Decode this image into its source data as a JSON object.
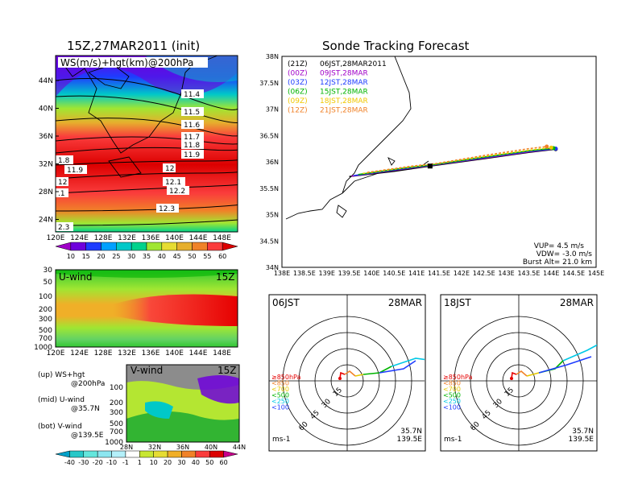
{
  "header": {
    "left_title": "15Z,27MAR2011 (init)",
    "right_title": "Sonde Tracking Forecast"
  },
  "ws_panel": {
    "label": "WS(m/s)+hgt(km)@200hPa",
    "lat_ticks": [
      "44N",
      "40N",
      "36N",
      "32N",
      "28N",
      "24N"
    ],
    "lon_ticks": [
      "120E",
      "124E",
      "128E",
      "132E",
      "136E",
      "140E",
      "144E",
      "148E"
    ],
    "contour_labels": [
      "11.4",
      "11.5",
      "11.6",
      "11.7",
      "11.8",
      "11.9",
      "12",
      "12.1",
      "12.2",
      "12.3",
      "1.8",
      "11.9",
      "12",
      ".1",
      "2.3"
    ],
    "colorbar": [
      "10",
      "15",
      "20",
      "25",
      "30",
      "35",
      "40",
      "45",
      "50",
      "55",
      "60"
    ],
    "colorbar_colors": [
      "#a000c8",
      "#6e00dc",
      "#1e3cff",
      "#00a0ff",
      "#00c8c8",
      "#00d28c",
      "#a0e632",
      "#e6dc32",
      "#e6af2d",
      "#f08228",
      "#fa3c3c",
      "#dc0000"
    ]
  },
  "u_panel": {
    "label": "U-wind",
    "time": "15Z",
    "levels": [
      "30",
      "50",
      "100",
      "200",
      "300",
      "500",
      "700",
      "1000"
    ],
    "lon_ticks": [
      "120E",
      "124E",
      "128E",
      "132E",
      "136E",
      "140E",
      "144E",
      "148E"
    ]
  },
  "v_panel": {
    "label": "V-wind",
    "time": "15Z",
    "levels": [
      "100",
      "200",
      "300",
      "500",
      "700",
      "1000"
    ],
    "lat_ticks": [
      "28N",
      "32N",
      "36N",
      "40N",
      "44N"
    ],
    "colorbar": [
      "-40",
      "-30",
      "-20",
      "-10",
      "-1",
      "1",
      "10",
      "20",
      "30",
      "40",
      "50",
      "60"
    ],
    "colorbar_colors": [
      "#00a0c8",
      "#28c8c8",
      "#64e6dc",
      "#8ce6f0",
      "#b4f0fa",
      "#ffffff",
      "#c8e632",
      "#e6dc32",
      "#f0af28",
      "#f08228",
      "#fa3c3c",
      "#dc0000",
      "#c8008c"
    ]
  },
  "legend_notes": [
    {
      "a": "(up) WS+hgt",
      "b": "@200hPa"
    },
    {
      "a": "(mid) U-wind",
      "b": "@35.7N"
    },
    {
      "a": "(bot) V-wind",
      "b": "@139.5E"
    }
  ],
  "track_panel": {
    "lat_ticks": [
      "38N",
      "37.5N",
      "37N",
      "36.5N",
      "36N",
      "35.5N",
      "35N",
      "34.5N",
      "34N"
    ],
    "lon_ticks": [
      "138E",
      "138.5E",
      "139E",
      "139.5E",
      "140E",
      "140.5E",
      "141E",
      "141.5E",
      "142E",
      "142.5E",
      "143E",
      "143.5E",
      "144E",
      "144.5E",
      "145E"
    ],
    "launches": [
      {
        "utc": "(21Z)",
        "jst": "06JST,28MAR2011",
        "color": "#000000"
      },
      {
        "utc": "(00Z)",
        "jst": "09JST,28MAR",
        "color": "#a000c8"
      },
      {
        "utc": "(03Z)",
        "jst": "12JST,28MAR",
        "color": "#1e3cff"
      },
      {
        "utc": "(06Z)",
        "jst": "15JST,28MAR",
        "color": "#00b400"
      },
      {
        "utc": "(09Z)",
        "jst": "18JST,28MAR",
        "color": "#f0c800"
      },
      {
        "utc": "(12Z)",
        "jst": "21JST,28MAR",
        "color": "#f08228"
      }
    ],
    "vup": "VUP= 4.5 m/s",
    "vdw": "VDW= -3.0 m/s",
    "burst": "Burst Alt= 21.0 km"
  },
  "hodo_left": {
    "time": "06JST",
    "date": "28MAR",
    "loc1": "35.7N",
    "loc2": "139.5E",
    "unit": "ms-1",
    "ring_labels": [
      "15",
      "30",
      "45",
      "60"
    ],
    "levels": [
      "≥850hPa",
      "<850",
      "<700",
      "<500",
      "<250",
      "<100"
    ],
    "level_colors": [
      "#e60000",
      "#f08228",
      "#e6c800",
      "#00b400",
      "#00c8e6",
      "#1e3cff"
    ]
  },
  "hodo_right": {
    "time": "18JST",
    "date": "28MAR",
    "loc1": "35.7N",
    "loc2": "139.5E",
    "unit": "ms-1",
    "ring_labels": [
      "15",
      "30",
      "45",
      "60"
    ],
    "levels": [
      "≥850hPa",
      "<850",
      "<700",
      "<500",
      "<250",
      "<100"
    ],
    "level_colors": [
      "#e60000",
      "#f08228",
      "#e6c800",
      "#00b400",
      "#00c8e6",
      "#1e3cff"
    ]
  },
  "chart_data": [
    {
      "type": "line",
      "title": "Sonde Tracking Forecast",
      "xlim": [
        138,
        145
      ],
      "ylim": [
        34,
        38
      ],
      "series": [
        {
          "name": "(21Z) 06JST,28MAR2011",
          "x": [
            139.5,
            140.5,
            141.3,
            142.5,
            143.5,
            144.1
          ],
          "y": [
            35.72,
            35.82,
            35.92,
            36.06,
            36.18,
            36.24
          ]
        },
        {
          "name": "(00Z) 09JST,28MAR",
          "x": [
            139.55,
            140.5,
            141.3,
            142.5,
            143.5,
            144.1
          ],
          "y": [
            35.73,
            35.84,
            35.93,
            36.07,
            36.19,
            36.25
          ]
        },
        {
          "name": "(03Z) 12JST,28MAR",
          "x": [
            139.6,
            140.6,
            141.35,
            142.5,
            143.5,
            144.1
          ],
          "y": [
            35.74,
            35.86,
            35.94,
            36.08,
            36.2,
            36.25
          ]
        },
        {
          "name": "(06Z) 15JST,28MAR",
          "x": [
            139.7,
            140.7,
            141.4,
            142.5,
            143.5,
            144.05
          ],
          "y": [
            35.76,
            35.88,
            35.95,
            36.09,
            36.21,
            36.26
          ]
        },
        {
          "name": "(09Z) 18JST,28MAR",
          "x": [
            139.8,
            140.8,
            141.4,
            142.5,
            143.5,
            144.0
          ],
          "y": [
            35.78,
            35.9,
            35.96,
            36.1,
            36.22,
            36.27
          ]
        },
        {
          "name": "(12Z) 21JST,28MAR",
          "x": [
            139.9,
            140.9,
            141.45,
            142.5,
            143.5,
            143.9
          ],
          "y": [
            35.8,
            35.92,
            35.97,
            36.12,
            36.25,
            36.29
          ]
        }
      ]
    },
    {
      "type": "heatmap",
      "title": "WS(m/s)+hgt(km)@200hPa",
      "x": [
        "120E",
        "124E",
        "128E",
        "132E",
        "136E",
        "140E",
        "144E",
        "148E"
      ],
      "y": [
        "24N",
        "28N",
        "32N",
        "36N",
        "40N",
        "44N"
      ],
      "colorbar": [
        10,
        15,
        20,
        25,
        30,
        35,
        40,
        45,
        50,
        55,
        60
      ]
    }
  ]
}
